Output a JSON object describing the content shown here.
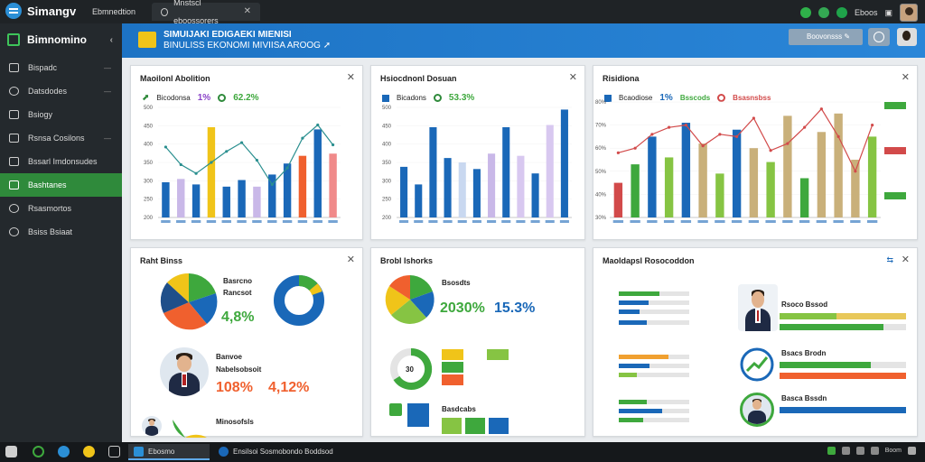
{
  "topbar": {
    "app_name": "Simangv",
    "tabs": [
      {
        "label": "Ebmnedtion"
      },
      {
        "label": "Mnstscl eboossorers"
      }
    ],
    "tray_text": "Eboos"
  },
  "sidebar": {
    "title": "Bimnomino",
    "items": [
      {
        "label": "Bispadc",
        "icon": "folder-icon"
      },
      {
        "label": "Datsdodes",
        "icon": "globe-icon"
      },
      {
        "label": "Bsiogy",
        "icon": "book-icon"
      },
      {
        "label": "Rsnsa Cosilons",
        "icon": "chart-icon"
      },
      {
        "label": "Bssarl Imdonsudes",
        "icon": "calendar-icon"
      },
      {
        "label": "Bashtanes",
        "icon": "document-icon",
        "active": true
      },
      {
        "label": "Rsasmortos",
        "icon": "gear-icon"
      },
      {
        "label": "Bsiss Bsiaat",
        "icon": "user-icon"
      }
    ]
  },
  "banner": {
    "title": "SIMUIJAKI EDIGAEKI MIENISI",
    "subtitle": "BINULISS EKONOMI MIVIISA AROOG ➚",
    "button_label": "Boovonsss ✎",
    "colors": {
      "start": "#1d73c4",
      "end": "#2a86d8"
    }
  },
  "cards": {
    "c1": {
      "title": "Maoilonl Abolition",
      "legend_label": "Bicodonsa",
      "pct1": "1%",
      "pct2": "62.2%"
    },
    "c2": {
      "title": "Hsiocdnonl Dosuan",
      "legend_label": "Bicadons",
      "pct1": "53.3%"
    },
    "c3": {
      "title": "Risidiona",
      "legend_label": "Bcaodiose",
      "pct1": "1%",
      "pct2": "Bsscods",
      "pct3": "Bsasnsbss"
    },
    "c4": {
      "title": "Raht Binss",
      "legend_a": "Basrcno",
      "legend_b": "Rancsot",
      "value": "4,8%",
      "caption_a": "Banvoe",
      "caption_b": "Nabelsobsoit",
      "stat_a": "108%",
      "stat_b": "4,12%",
      "bottom_label": "Minosofsls"
    },
    "c5": {
      "title": "Brobl Ishorks",
      "legend_label": "Bsosdts",
      "stat_a": "2030%",
      "stat_b": "15.3%",
      "donut_value": "30",
      "bottom_label": "Basdcabs"
    },
    "c6": {
      "title": "Maoldapsl Rosocoddon",
      "names": [
        "Rsoco Bssod",
        "Bsacs Brodn",
        "Basca Bssdn"
      ]
    }
  },
  "chart_data": [
    {
      "type": "bar",
      "title": "Maoilonl Abolition",
      "categories": [
        "1",
        "2",
        "3",
        "4",
        "5",
        "6",
        "7",
        "8",
        "9",
        "10",
        "11",
        "12"
      ],
      "series": [
        {
          "values": [
            32,
            35,
            30,
            82,
            28,
            34,
            28,
            39,
            49,
            56,
            80,
            58
          ]
        }
      ],
      "line": [
        64,
        48,
        40,
        50,
        60,
        68,
        52,
        30,
        45,
        72,
        84,
        66
      ],
      "ylim": [
        0,
        100
      ],
      "yticks": [
        "200",
        "250",
        "300",
        "350",
        "400",
        "450",
        "500"
      ]
    },
    {
      "type": "bar",
      "title": "Hsiocdnonl Dosuan",
      "categories": [
        "1",
        "2",
        "3",
        "4",
        "5",
        "6",
        "7",
        "8",
        "9",
        "10",
        "11",
        "12"
      ],
      "series": [
        {
          "values": [
            46,
            30,
            82,
            54,
            50,
            44,
            58,
            82,
            56,
            40,
            84,
            98
          ]
        }
      ],
      "ylim": [
        0,
        100
      ],
      "yticks": [
        "200",
        "250",
        "300",
        "350",
        "400",
        "450",
        "500"
      ]
    },
    {
      "type": "bar",
      "title": "Risidiona",
      "categories": [
        "1",
        "2",
        "3",
        "4",
        "5",
        "6",
        "7",
        "8",
        "9",
        "10",
        "11",
        "12",
        "13",
        "14",
        "15",
        "16"
      ],
      "series": [
        {
          "values": [
            30,
            46,
            70,
            52,
            82,
            64,
            38,
            76,
            60,
            48,
            88,
            34,
            74,
            90,
            50,
            70
          ]
        }
      ],
      "line": [
        56,
        60,
        72,
        78,
        80,
        62,
        72,
        70,
        86,
        58,
        64,
        78,
        94,
        70,
        40,
        80
      ],
      "ylim": [
        0,
        100
      ],
      "yticks": [
        "30%",
        "40%",
        "50%",
        "60%",
        "70%",
        "80%"
      ]
    }
  ],
  "taskbar": {
    "apps": [
      {
        "label": "Ebosmo"
      },
      {
        "label": "Ensilsoi Sosmobondo Boddsod"
      }
    ],
    "time": "Boom"
  }
}
